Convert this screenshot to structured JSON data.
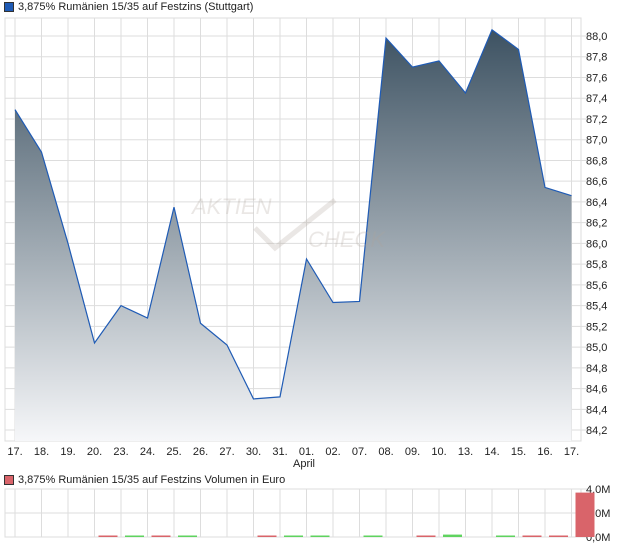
{
  "chart_data": [
    {
      "type": "area",
      "title": "3,875% Rumänien 15/35 auf Festzins (Stuttgart)",
      "series_color": "#1f5bb5",
      "categories": [
        "17.",
        "18.",
        "19.",
        "20.",
        "23.",
        "24.",
        "25.",
        "26.",
        "27.",
        "30.",
        "31.",
        "01.",
        "02.",
        "07.",
        "08.",
        "09.",
        "10.",
        "13.",
        "14.",
        "15.",
        "16.",
        "17."
      ],
      "month_label": "April",
      "month_label_at": "01.",
      "values": [
        87.29,
        86.88,
        86.0,
        85.04,
        85.4,
        85.28,
        86.35,
        85.23,
        85.02,
        84.5,
        84.52,
        85.85,
        85.43,
        85.44,
        87.98,
        87.7,
        87.76,
        87.45,
        88.06,
        87.87,
        86.54,
        86.46
      ],
      "yticks": [
        "88,0",
        "87,8",
        "87,6",
        "87,4",
        "87,2",
        "87,0",
        "86,8",
        "86,6",
        "86,4",
        "86,2",
        "86,0",
        "85,8",
        "85,6",
        "85,4",
        "85,2",
        "85,0",
        "84,8",
        "84,6",
        "84,4",
        "84,2"
      ],
      "ylim": [
        84.1,
        88.2
      ],
      "grid": true,
      "watermark": "AKTIEN CHECK"
    },
    {
      "type": "bar",
      "title": "3,875% Rumänien 15/35 auf Festzins Volumen in Euro",
      "series_color": "#d9646a",
      "up_color": "#5fd35f",
      "down_color": "#d9646a",
      "values": [
        0,
        0,
        0,
        0.05,
        0.12,
        0.05,
        0.05,
        0,
        0,
        0.12,
        0.05,
        0.05,
        0,
        0.05,
        0,
        0.12,
        0.2,
        0,
        0.05,
        0.05,
        0.05,
        3.7
      ],
      "directions": [
        "",
        "",
        "",
        "down",
        "up",
        "down",
        "up",
        "",
        "",
        "down",
        "up",
        "up",
        "",
        "up",
        "",
        "down",
        "up",
        "",
        "up",
        "down",
        "down",
        "down"
      ],
      "yticks": [
        "4,0M",
        "2,0M",
        "0,0M"
      ],
      "ylim": [
        0,
        4
      ],
      "unit": "M"
    }
  ]
}
